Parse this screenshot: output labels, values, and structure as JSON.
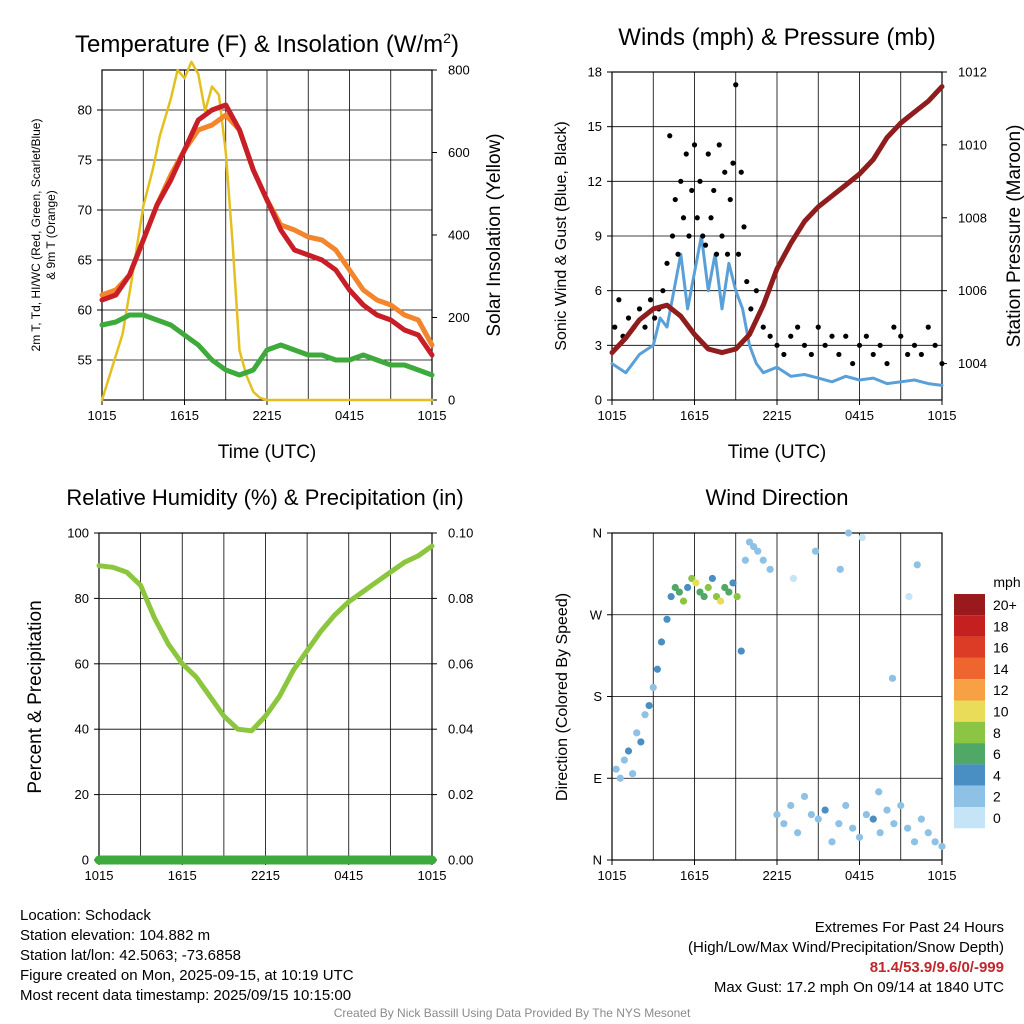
{
  "figure": {
    "panels": {
      "temp": {
        "title": "Temperature (F) & Insolation (W/m²)",
        "ylabel_lines": [
          "2m T, Td, HI/WC (Red, Green, Scarlet/Blue)",
          "& 9m T (Orange)"
        ],
        "y2label": "Solar Insolation (Yellow)",
        "xlabel": "Time (UTC)"
      },
      "wind": {
        "title": "Winds (mph) & Pressure (mb)",
        "ylabel": "Sonic Wind & Gust (Blue, Black)",
        "y2label": "Station Pressure (Maroon)",
        "xlabel": "Time (UTC)"
      },
      "rh": {
        "title": "Relative Humidity (%) & Precipitation (in)",
        "ylabel": "Percent & Precipitation"
      },
      "dir": {
        "title": "Wind Direction",
        "ylabel": "Direction (Colored By Speed)"
      }
    },
    "colorbar": {
      "unit": "mph",
      "labels": [
        "20+",
        "18",
        "16",
        "14",
        "12",
        "10",
        "8",
        "6",
        "4",
        "2",
        "0"
      ],
      "colors": [
        "#99191c",
        "#c4201f",
        "#dc3b26",
        "#ef6530",
        "#f7a044",
        "#e8dc58",
        "#8cc444",
        "#4fa866",
        "#4a8fc4",
        "#8dc1e6",
        "#c5e5f7"
      ]
    }
  },
  "chart_data": [
    {
      "type": "line",
      "id": "temp",
      "title": "Temperature (F) & Insolation (W/m²)",
      "xlabel": "Time (UTC)",
      "ylabel": "2m T, Td, HI/WC (Red, Green, Scarlet/Blue) & 9m T (Orange)",
      "y2label": "Solar Insolation (Yellow)",
      "x_ticks": [
        "1015",
        "1615",
        "2215",
        "0415",
        "1015"
      ],
      "x_hours": [
        0,
        6,
        12,
        18,
        24
      ],
      "ylim": [
        51,
        84
      ],
      "yticks": [
        55,
        60,
        65,
        70,
        75,
        80
      ],
      "y2lim": [
        0,
        800
      ],
      "y2ticks": [
        0,
        200,
        400,
        600,
        800
      ],
      "series": [
        {
          "color": "#e3c020",
          "axis": "y2",
          "x": [
            0,
            1.5,
            2.2,
            3,
            3.7,
            4.2,
            5,
            5.5,
            6,
            6.5,
            7,
            7.5,
            8,
            8.5,
            9,
            9.5,
            10,
            10.5,
            11,
            11.5,
            12,
            13,
            24
          ],
          "y": [
            0,
            160,
            300,
            470,
            560,
            640,
            730,
            800,
            780,
            820,
            790,
            700,
            760,
            740,
            600,
            380,
            120,
            60,
            20,
            5,
            0,
            0,
            0
          ]
        },
        {
          "color": "#f3862c",
          "x": [
            0,
            1,
            2,
            3,
            4,
            5,
            6,
            7,
            8,
            9,
            10,
            11,
            12,
            13,
            14,
            15,
            16,
            17,
            18,
            19,
            20,
            21,
            22,
            23,
            24
          ],
          "y": [
            61.5,
            62,
            63.5,
            67,
            70.5,
            73.5,
            76,
            78,
            78.5,
            79.5,
            78,
            74,
            71,
            68.5,
            68,
            67.3,
            67,
            66,
            64,
            62,
            61,
            60.5,
            59.5,
            59,
            56.5
          ]
        },
        {
          "color": "#c81e27",
          "x": [
            0,
            1,
            2,
            3,
            4,
            5,
            6,
            7,
            8,
            9,
            10,
            11,
            12,
            13,
            14,
            15,
            16,
            17,
            18,
            19,
            20,
            21,
            22,
            23,
            24
          ],
          "y": [
            61,
            61.5,
            63.5,
            67,
            70.5,
            73,
            76,
            79,
            80,
            80.5,
            78,
            74,
            71,
            68,
            66,
            65.5,
            65,
            64,
            62,
            60.5,
            59.5,
            59,
            58,
            57.5,
            55.5
          ]
        },
        {
          "color": "#3faa3c",
          "x": [
            0,
            1,
            2,
            3,
            4,
            5,
            6,
            7,
            8,
            9,
            10,
            11,
            12,
            13,
            14,
            15,
            16,
            17,
            18,
            19,
            20,
            21,
            22,
            23,
            24
          ],
          "y": [
            58.5,
            58.8,
            59.5,
            59.5,
            59,
            58.5,
            57.5,
            56.5,
            55,
            54,
            53.5,
            54,
            56,
            56.5,
            56,
            55.5,
            55.5,
            55,
            55,
            55.5,
            55,
            54.5,
            54.5,
            54,
            53.5
          ]
        }
      ]
    },
    {
      "type": "line",
      "id": "wind",
      "title": "Winds (mph) & Pressure (mb)",
      "xlabel": "Time (UTC)",
      "ylabel": "Sonic Wind & Gust (Blue, Black)",
      "y2label": "Station Pressure (Maroon)",
      "x_ticks": [
        "1015",
        "1615",
        "2215",
        "0415",
        "1015"
      ],
      "x_hours": [
        0,
        6,
        12,
        18,
        24
      ],
      "ylim": [
        0,
        18
      ],
      "yticks": [
        0,
        3,
        6,
        9,
        12,
        15,
        18
      ],
      "y2lim": [
        1003,
        1012
      ],
      "y2ticks": [
        1004,
        1006,
        1008,
        1010,
        1012
      ],
      "series": [
        {
          "color": "#5aa0d8",
          "x": [
            0,
            1,
            2,
            3,
            3.5,
            4,
            4.5,
            5,
            5.5,
            6,
            6.5,
            7,
            7.5,
            8,
            8.5,
            9,
            9.5,
            10,
            10.5,
            11,
            12,
            13,
            14,
            15,
            16,
            17,
            18,
            19,
            20,
            21,
            22,
            23,
            24
          ],
          "y": [
            2,
            1.5,
            2.5,
            3,
            4.5,
            4,
            6,
            8,
            5,
            7,
            9,
            6,
            8,
            5,
            7.5,
            6,
            5,
            3,
            2,
            1.5,
            1.8,
            1.3,
            1.4,
            1.2,
            1,
            1.3,
            1.1,
            1.2,
            0.9,
            1,
            1.1,
            0.9,
            0.8
          ]
        },
        {
          "color": "#8f1d1d",
          "axis": "y2",
          "x": [
            0,
            1,
            2,
            3,
            4,
            5,
            6,
            7,
            8,
            9,
            10,
            11,
            12,
            13,
            14,
            15,
            16,
            17,
            18,
            19,
            20,
            21,
            22,
            23,
            24
          ],
          "y": [
            1004.3,
            1004.7,
            1005.2,
            1005.5,
            1005.6,
            1005.3,
            1004.8,
            1004.4,
            1004.3,
            1004.4,
            1004.8,
            1005.6,
            1006.6,
            1007.3,
            1007.9,
            1008.3,
            1008.6,
            1008.9,
            1009.2,
            1009.6,
            1010.2,
            1010.6,
            1010.9,
            1011.2,
            1011.6
          ]
        }
      ],
      "gust_points": {
        "color": "#000000",
        "x": [
          0.2,
          0.5,
          0.8,
          1.2,
          1.6,
          2,
          2.4,
          2.8,
          3.1,
          3.4,
          3.7,
          4,
          4.2,
          4.4,
          4.6,
          4.8,
          5,
          5.2,
          5.4,
          5.6,
          5.8,
          6,
          6.2,
          6.4,
          6.6,
          6.8,
          7,
          7.2,
          7.4,
          7.6,
          7.8,
          8,
          8.2,
          8.4,
          8.6,
          8.8,
          9,
          9.2,
          9.4,
          9.6,
          9.8,
          10.1,
          10.5,
          11,
          11.5,
          12,
          12.5,
          13,
          13.5,
          14,
          14.5,
          15,
          15.5,
          16,
          16.5,
          17,
          17.5,
          18,
          18.5,
          19,
          19.5,
          20,
          20.5,
          21,
          21.5,
          22,
          22.5,
          23,
          23.5,
          24
        ],
        "y": [
          4,
          5.5,
          3.5,
          4.5,
          4,
          5,
          4,
          5.5,
          4.5,
          5,
          6,
          7.5,
          14.5,
          9,
          11,
          8,
          12,
          10,
          13.5,
          9,
          11.5,
          14,
          10,
          12,
          9,
          8.5,
          13.5,
          10,
          11.5,
          8,
          14,
          9,
          12.5,
          8,
          11,
          13,
          17.3,
          8,
          12.5,
          9.5,
          6.5,
          5,
          6,
          4,
          3.5,
          3,
          2.5,
          3.5,
          4,
          3,
          2.5,
          4,
          3,
          3.5,
          2.5,
          3.5,
          2,
          3,
          3.5,
          2.5,
          3,
          2,
          4,
          3.5,
          2.5,
          3,
          2.5,
          4,
          3,
          2
        ]
      }
    },
    {
      "type": "line",
      "id": "rh",
      "title": "Relative Humidity (%) & Precipitation (in)",
      "ylabel": "Percent & Precipitation",
      "x_ticks": [
        "1015",
        "1615",
        "2215",
        "0415",
        "1015"
      ],
      "x_hours": [
        0,
        6,
        12,
        18,
        24
      ],
      "ylim": [
        0,
        100
      ],
      "yticks": [
        0,
        20,
        40,
        60,
        80,
        100
      ],
      "y2lim": [
        0,
        0.1
      ],
      "y2ticks": [
        "0.00",
        "0.02",
        "0.04",
        "0.06",
        "0.08",
        "0.10"
      ],
      "series": [
        {
          "color": "#8cc63f",
          "x": [
            0,
            1,
            2,
            3,
            4,
            5,
            6,
            7,
            8,
            9,
            10,
            11,
            12,
            13,
            14,
            15,
            16,
            17,
            18,
            19,
            20,
            21,
            22,
            23,
            24
          ],
          "y": [
            90,
            89.5,
            88,
            84,
            74,
            66,
            60,
            56,
            50,
            44,
            40,
            39.5,
            44,
            50,
            58,
            64,
            70,
            75,
            79,
            82,
            85,
            88,
            91,
            93,
            96
          ]
        },
        {
          "color": "#3faa3c",
          "axis": "y2",
          "x": [
            0,
            24
          ],
          "y": [
            0,
            0
          ]
        }
      ]
    },
    {
      "type": "scatter",
      "id": "dir",
      "title": "Wind Direction",
      "ylabel": "Direction (Colored By Speed)",
      "x_ticks": [
        "1015",
        "1615",
        "2215",
        "0415",
        "1015"
      ],
      "x_hours": [
        0,
        6,
        12,
        18,
        24
      ],
      "ytick_labels": [
        "N",
        "E",
        "S",
        "W",
        "N"
      ],
      "ylim": [
        0,
        360
      ],
      "points": {
        "x": [
          0.3,
          0.6,
          0.9,
          1.2,
          1.5,
          1.8,
          2.1,
          2.4,
          2.7,
          3.0,
          3.3,
          3.6,
          4.0,
          4.3,
          4.6,
          4.9,
          5.2,
          5.5,
          5.8,
          6.1,
          6.4,
          6.7,
          7.0,
          7.3,
          7.6,
          7.9,
          8.2,
          8.5,
          8.8,
          9.1,
          9.4,
          9.7,
          10.0,
          10.3,
          10.6,
          11.0,
          11.5,
          12.0,
          12.5,
          13.0,
          13.5,
          14.0,
          14.5,
          15.0,
          15.5,
          16.0,
          16.5,
          17.0,
          17.5,
          18.0,
          18.5,
          19.0,
          19.5,
          20.0,
          20.5,
          21.0,
          21.5,
          22.0,
          22.5,
          23.0,
          23.5,
          24.0,
          13.2,
          14.8,
          16.6,
          18.2,
          20.4,
          22.2,
          21.6,
          17.2,
          19.4
        ],
        "y": [
          100,
          90,
          110,
          120,
          95,
          140,
          130,
          160,
          170,
          190,
          210,
          240,
          265,
          290,
          300,
          295,
          285,
          300,
          310,
          305,
          295,
          290,
          300,
          310,
          290,
          285,
          300,
          295,
          305,
          290,
          230,
          330,
          350,
          345,
          340,
          330,
          320,
          50,
          40,
          60,
          30,
          70,
          50,
          45,
          55,
          20,
          40,
          60,
          35,
          25,
          50,
          45,
          30,
          55,
          40,
          60,
          35,
          20,
          45,
          30,
          20,
          15,
          310,
          340,
          320,
          355,
          200,
          325,
          290,
          360,
          75
        ],
        "speed": [
          1.5,
          2.5,
          2,
          3,
          1,
          2,
          3.5,
          2,
          3,
          2.5,
          3,
          3.5,
          4,
          4.5,
          6,
          5,
          8,
          4,
          7,
          9,
          6,
          5,
          8,
          4,
          7,
          9,
          5,
          6,
          4,
          7,
          4,
          2,
          1.5,
          1,
          2,
          1.5,
          1,
          1.5,
          2,
          1,
          2.5,
          1.5,
          2,
          1,
          3,
          1.5,
          2,
          2.5,
          1,
          1.5,
          2,
          3,
          1,
          2,
          1.5,
          2.5,
          1,
          1.5,
          2,
          1,
          1.5,
          1,
          0.5,
          1.5,
          1,
          0.5,
          1,
          1.5,
          0.5,
          1,
          2
        ]
      }
    }
  ],
  "info": {
    "location": "Location: Schodack",
    "elevation": "Station elevation: 104.882 m",
    "latlon": "Station lat/lon: 42.5063; -73.6858",
    "created": "Figure created on Mon, 2025-09-15, at 10:19 UTC",
    "recent": "Most recent data timestamp: 2025/09/15 10:15:00"
  },
  "extremes": {
    "title": "Extremes For Past 24 Hours",
    "subtitle": "(High/Low/Max Wind/Precipitation/Snow Depth)",
    "values": "81.4/53.9/9.6/0/-999",
    "gust": "Max Gust: 17.2 mph On 09/14 at 1840 UTC"
  },
  "credit": "Created By Nick Bassill Using Data Provided By The NYS Mesonet"
}
